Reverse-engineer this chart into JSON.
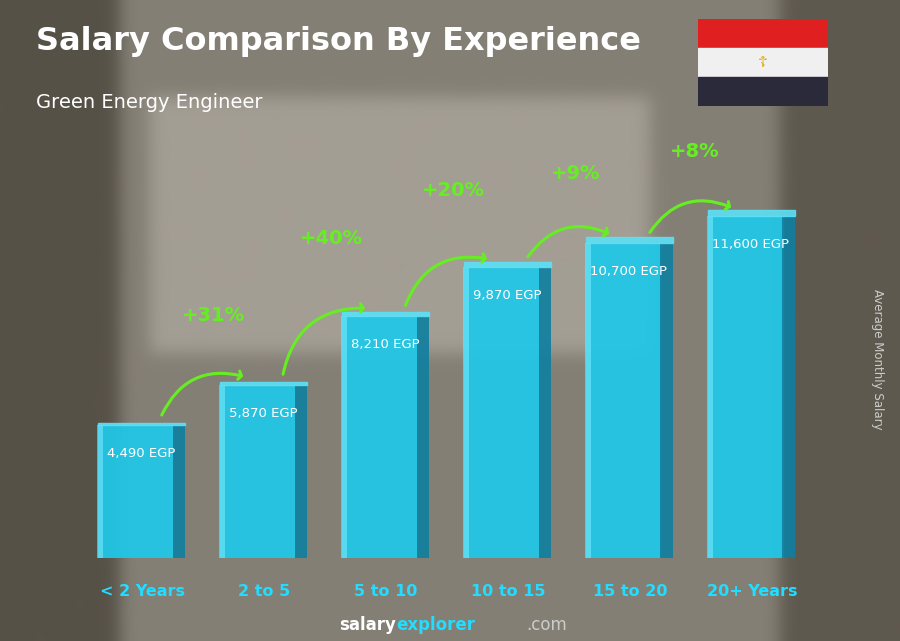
{
  "title": "Salary Comparison By Experience",
  "subtitle": "Green Energy Engineer",
  "categories": [
    "< 2 Years",
    "2 to 5",
    "5 to 10",
    "10 to 15",
    "15 to 20",
    "20+ Years"
  ],
  "values": [
    4490,
    5870,
    8210,
    9870,
    10700,
    11600
  ],
  "value_labels": [
    "4,490 EGP",
    "5,870 EGP",
    "8,210 EGP",
    "9,870 EGP",
    "10,700 EGP",
    "11,600 EGP"
  ],
  "pct_labels": [
    "+31%",
    "+40%",
    "+20%",
    "+9%",
    "+8%"
  ],
  "bar_face_color": "#1fc8e8",
  "bar_side_color": "#0e7fa0",
  "bar_top_color": "#5de0f5",
  "bar_highlight_color": "#80eeff",
  "bg_color": "#7a7a6a",
  "title_color": "#ffffff",
  "subtitle_color": "#ffffff",
  "ylabel": "Average Monthly Salary",
  "ylim_max": 13500,
  "bar_width": 0.62,
  "arrow_color": "#66ee22",
  "pct_color": "#66ee22",
  "value_label_color": "#ffffff",
  "xtick_color": "#22ddff",
  "footer_salary_color": "#ffffff",
  "footer_explorer_color": "#22ddff",
  "footer_dot_com_color": "#cccccc",
  "flag_red": "#e02020",
  "flag_white": "#f0f0f0",
  "flag_black": "#2a2a3a",
  "flag_eagle_color": "#ddaa00"
}
